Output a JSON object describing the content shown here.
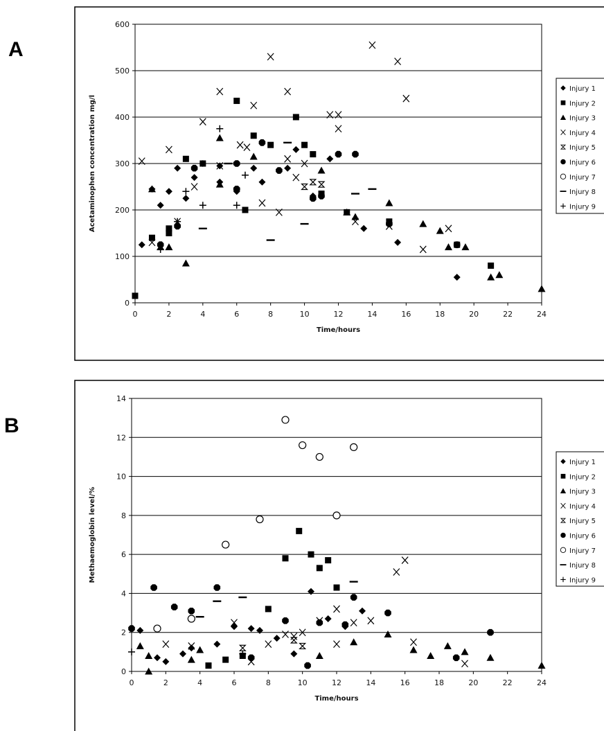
{
  "figure": {
    "panels": [
      "A",
      "B"
    ]
  },
  "chart_data": [
    {
      "type": "scatter",
      "panel": "A",
      "xlabel": "Time/hours",
      "ylabel": "Acetaminophen concentration mg/l",
      "xlim": [
        0,
        24
      ],
      "ylim": [
        0,
        600
      ],
      "xticks": [
        "0",
        "2",
        "4",
        "6",
        "8",
        "10",
        "12",
        "14",
        "16",
        "18",
        "20",
        "22",
        "24"
      ],
      "yticks": [
        "0",
        "100",
        "200",
        "300",
        "400",
        "500",
        "600"
      ],
      "grid": "horizontal",
      "legend": "right",
      "legend_labels": [
        "Injury 1",
        "Injury 2",
        "Injury 3",
        "Injury 4",
        "Injury 5",
        "Injury 6",
        "Injury 7",
        "Injury 8",
        "Injury 9"
      ],
      "series": [
        {
          "name": "Injury 1",
          "marker": "diamond",
          "points": [
            [
              0.4,
              125
            ],
            [
              1,
              245
            ],
            [
              1.5,
              210
            ],
            [
              2,
              240
            ],
            [
              2.5,
              290
            ],
            [
              3,
              225
            ],
            [
              3.5,
              270
            ],
            [
              4,
              300
            ],
            [
              5,
              295
            ],
            [
              5,
              260
            ],
            [
              6,
              240
            ],
            [
              7,
              290
            ],
            [
              7.5,
              260
            ],
            [
              9,
              290
            ],
            [
              9.5,
              330
            ],
            [
              10.5,
              230
            ],
            [
              11.5,
              310
            ],
            [
              13.5,
              160
            ],
            [
              15.5,
              130
            ],
            [
              19,
              55
            ]
          ]
        },
        {
          "name": "Injury 2",
          "marker": "square",
          "points": [
            [
              0,
              15
            ],
            [
              1,
              140
            ],
            [
              2,
              150
            ],
            [
              2,
              160
            ],
            [
              3,
              310
            ],
            [
              4,
              300
            ],
            [
              6,
              435
            ],
            [
              6.5,
              200
            ],
            [
              7,
              360
            ],
            [
              8,
              340
            ],
            [
              9.5,
              400
            ],
            [
              10,
              340
            ],
            [
              10.5,
              320
            ],
            [
              11,
              235
            ],
            [
              12.5,
              195
            ],
            [
              15,
              175
            ],
            [
              19,
              125
            ],
            [
              21,
              80
            ]
          ]
        },
        {
          "name": "Injury 3",
          "marker": "triangle",
          "points": [
            [
              1,
              245
            ],
            [
              1.5,
              120
            ],
            [
              2,
              120
            ],
            [
              3,
              85
            ],
            [
              5,
              355
            ],
            [
              5,
              255
            ],
            [
              7,
              315
            ],
            [
              11,
              285
            ],
            [
              12.5,
              195
            ],
            [
              13,
              185
            ],
            [
              15,
              215
            ],
            [
              17,
              170
            ],
            [
              18,
              155
            ],
            [
              18.5,
              120
            ],
            [
              19.5,
              120
            ],
            [
              21,
              55
            ],
            [
              21.5,
              60
            ],
            [
              24,
              30
            ]
          ]
        },
        {
          "name": "Injury 4",
          "marker": "x",
          "points": [
            [
              0.4,
              305
            ],
            [
              1,
              130
            ],
            [
              2,
              330
            ],
            [
              2.5,
              175
            ],
            [
              3.5,
              250
            ],
            [
              4,
              390
            ],
            [
              5,
              455
            ],
            [
              5,
              295
            ],
            [
              6.2,
              340
            ],
            [
              6.6,
              335
            ],
            [
              7,
              425
            ],
            [
              7.5,
              215
            ],
            [
              8,
              530
            ],
            [
              8.5,
              195
            ],
            [
              9,
              455
            ],
            [
              9,
              310
            ],
            [
              9.5,
              270
            ],
            [
              10,
              300
            ],
            [
              11.5,
              405
            ],
            [
              12,
              405
            ],
            [
              12,
              375
            ],
            [
              13,
              175
            ],
            [
              14,
              555
            ],
            [
              15,
              165
            ],
            [
              15.5,
              520
            ],
            [
              16,
              440
            ],
            [
              17,
              115
            ],
            [
              18.5,
              160
            ]
          ]
        },
        {
          "name": "Injury 5",
          "marker": "hourglass",
          "points": [
            [
              10,
              250
            ],
            [
              10.5,
              260
            ],
            [
              11,
              255
            ]
          ]
        },
        {
          "name": "Injury 6",
          "marker": "octagon",
          "points": [
            [
              1.5,
              125
            ],
            [
              2.5,
              165
            ],
            [
              3.5,
              290
            ],
            [
              6,
              300
            ],
            [
              6,
              245
            ],
            [
              7.5,
              345
            ],
            [
              8.5,
              285
            ],
            [
              10.5,
              225
            ],
            [
              11,
              230
            ],
            [
              12,
              320
            ],
            [
              13,
              320
            ],
            [
              15,
              170
            ],
            [
              19,
              125
            ]
          ]
        },
        {
          "name": "Injury 7",
          "marker": "circle",
          "points": []
        },
        {
          "name": "Injury 8",
          "marker": "dash",
          "points": [
            [
              4,
              160
            ],
            [
              5.5,
              300
            ],
            [
              8,
              135
            ],
            [
              9,
              345
            ],
            [
              10,
              170
            ],
            [
              13,
              235
            ],
            [
              14,
              245
            ]
          ]
        },
        {
          "name": "Injury 9",
          "marker": "plus",
          "points": [
            [
              1.5,
              115
            ],
            [
              2.5,
              175
            ],
            [
              3,
              240
            ],
            [
              4,
              210
            ],
            [
              5,
              375
            ],
            [
              6,
              210
            ],
            [
              6.5,
              275
            ]
          ]
        }
      ]
    },
    {
      "type": "scatter",
      "panel": "B",
      "xlabel": "Time/hours",
      "ylabel": "Methaemoglobin level/%",
      "xlim": [
        0,
        24
      ],
      "ylim": [
        0,
        14
      ],
      "xticks": [
        "0",
        "2",
        "4",
        "6",
        "8",
        "10",
        "12",
        "14",
        "16",
        "18",
        "20",
        "22",
        "24"
      ],
      "yticks": [
        "0",
        "2",
        "4",
        "6",
        "8",
        "10",
        "12",
        "14"
      ],
      "grid": "horizontal",
      "legend": "right",
      "legend_labels": [
        "Injury 1",
        "Injury 2",
        "Injury 3",
        "Injury 4",
        "Injury 5",
        "Injury 6",
        "Injury 7",
        "Injury 8",
        "Injury 9"
      ],
      "series": [
        {
          "name": "Injury 1",
          "marker": "diamond",
          "points": [
            [
              0.5,
              2.1
            ],
            [
              1.5,
              0.7
            ],
            [
              2,
              0.5
            ],
            [
              3,
              0.9
            ],
            [
              3.5,
              1.2
            ],
            [
              5,
              1.4
            ],
            [
              6,
              2.3
            ],
            [
              7,
              2.2
            ],
            [
              7.5,
              2.1
            ],
            [
              8.5,
              1.7
            ],
            [
              9.5,
              0.9
            ],
            [
              10.5,
              4.1
            ],
            [
              11.5,
              2.7
            ],
            [
              12.5,
              2.3
            ],
            [
              13.5,
              3.1
            ]
          ]
        },
        {
          "name": "Injury 2",
          "marker": "square",
          "points": [
            [
              4.5,
              0.3
            ],
            [
              5.5,
              0.6
            ],
            [
              6.5,
              0.8
            ],
            [
              8,
              3.2
            ],
            [
              9,
              5.8
            ],
            [
              9.8,
              7.2
            ],
            [
              10.5,
              6.0
            ],
            [
              11,
              5.3
            ],
            [
              11.5,
              5.7
            ],
            [
              12,
              4.3
            ]
          ]
        },
        {
          "name": "Injury 3",
          "marker": "triangle",
          "points": [
            [
              0.5,
              1.3
            ],
            [
              1,
              0.8
            ],
            [
              1,
              0
            ],
            [
              3.5,
              0.6
            ],
            [
              4,
              1.1
            ],
            [
              11,
              0.8
            ],
            [
              13,
              1.5
            ],
            [
              15,
              1.9
            ],
            [
              16.5,
              1.1
            ],
            [
              17.5,
              0.8
            ],
            [
              18.5,
              1.3
            ],
            [
              19.5,
              1.0
            ],
            [
              21,
              0.7
            ],
            [
              24,
              0.3
            ]
          ]
        },
        {
          "name": "Injury 4",
          "marker": "x",
          "points": [
            [
              2,
              1.4
            ],
            [
              3.5,
              1.3
            ],
            [
              6,
              2.5
            ],
            [
              7,
              0.5
            ],
            [
              8,
              1.4
            ],
            [
              9,
              1.9
            ],
            [
              9.5,
              1.8
            ],
            [
              10,
              2.0
            ],
            [
              11,
              2.6
            ],
            [
              12,
              3.2
            ],
            [
              12,
              1.4
            ],
            [
              13,
              2.5
            ],
            [
              14,
              2.6
            ],
            [
              15.5,
              5.1
            ],
            [
              16,
              5.7
            ],
            [
              16.5,
              1.5
            ],
            [
              19.5,
              0.4
            ]
          ]
        },
        {
          "name": "Injury 5",
          "marker": "hourglass",
          "points": [
            [
              6.5,
              1.2
            ],
            [
              9.5,
              1.6
            ],
            [
              10,
              1.3
            ]
          ]
        },
        {
          "name": "Injury 6",
          "marker": "octagon",
          "points": [
            [
              0,
              2.2
            ],
            [
              1.3,
              4.3
            ],
            [
              2.5,
              3.3
            ],
            [
              3.5,
              3.1
            ],
            [
              5,
              4.3
            ],
            [
              7,
              0.7
            ],
            [
              9,
              2.6
            ],
            [
              10.3,
              0.3
            ],
            [
              11,
              2.5
            ],
            [
              12.5,
              2.4
            ],
            [
              13,
              3.8
            ],
            [
              15,
              3.0
            ],
            [
              19,
              0.7
            ],
            [
              21,
              2.0
            ]
          ]
        },
        {
          "name": "Injury 7",
          "marker": "circle",
          "points": [
            [
              1.5,
              2.2
            ],
            [
              3.5,
              2.7
            ],
            [
              5.5,
              6.5
            ],
            [
              7.5,
              7.8
            ],
            [
              9,
              12.9
            ],
            [
              10,
              11.6
            ],
            [
              11,
              11.0
            ],
            [
              12,
              8.0
            ],
            [
              13,
              11.5
            ]
          ]
        },
        {
          "name": "Injury 8",
          "marker": "dash",
          "points": [
            [
              4,
              2.8
            ],
            [
              5,
              3.6
            ],
            [
              6.5,
              3.8
            ],
            [
              13,
              4.6
            ]
          ]
        },
        {
          "name": "Injury 9",
          "marker": "plus",
          "points": [
            [
              0,
              1.0
            ],
            [
              6.5,
              0.9
            ]
          ]
        }
      ]
    }
  ]
}
